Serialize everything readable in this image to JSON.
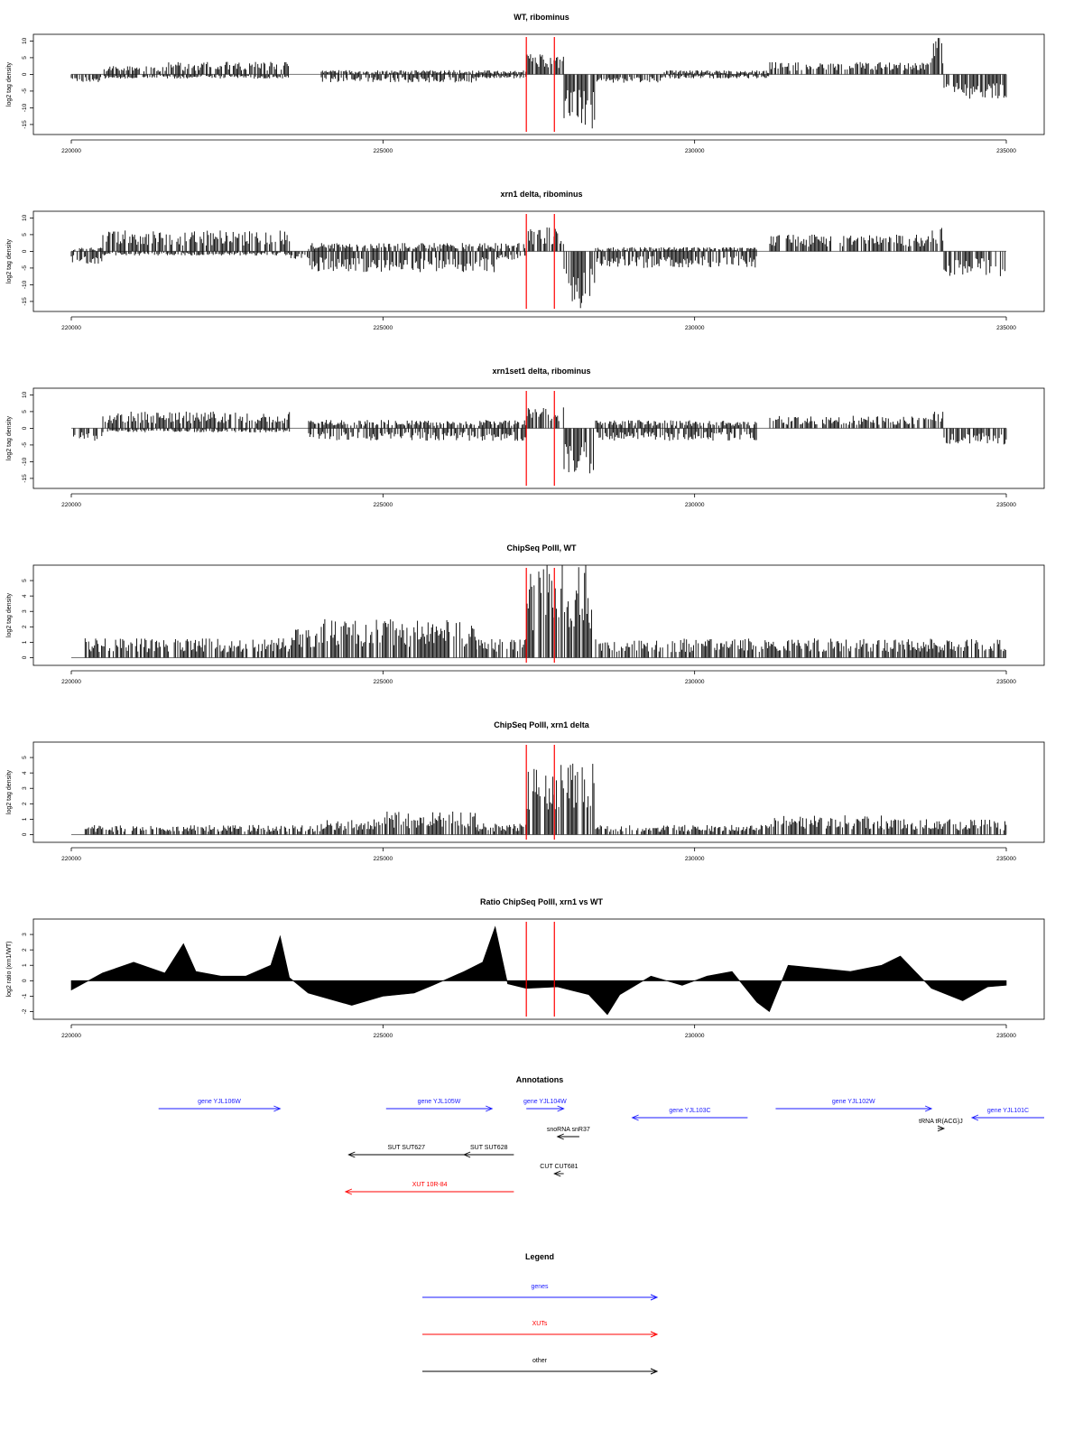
{
  "window_bp": [
    220000,
    235000
  ],
  "highlight_bp": [
    227300,
    227750
  ],
  "colors": {
    "genes": "#1a1aff",
    "xuts": "#ff0000",
    "other": "#000000",
    "highlight": "#ff0000",
    "signal": "#000000"
  },
  "chart_data": [
    {
      "type": "bar",
      "title": "WT, ribominus",
      "ylabel": "log2 tag density",
      "ylim": [
        -18,
        12
      ],
      "yticks": [
        "10",
        "5",
        "0",
        "-5",
        "-10",
        "-15"
      ],
      "xticks": [
        "220000",
        "225000",
        "230000",
        "235000"
      ],
      "bins": [
        {
          "from": 220000,
          "to": 220500,
          "pos": 0,
          "neg": 2
        },
        {
          "from": 220500,
          "to": 221500,
          "pos": 2,
          "neg": 1
        },
        {
          "from": 221500,
          "to": 223500,
          "pos": 3,
          "neg": 1
        },
        {
          "from": 223500,
          "to": 224000,
          "pos": 0,
          "neg": 0
        },
        {
          "from": 224000,
          "to": 226500,
          "pos": 1,
          "neg": 2
        },
        {
          "from": 226500,
          "to": 227300,
          "pos": 1,
          "neg": 1
        },
        {
          "from": 227300,
          "to": 227900,
          "pos": 5,
          "neg": 0
        },
        {
          "from": 227900,
          "to": 228400,
          "pos": 0,
          "neg": 13
        },
        {
          "from": 228400,
          "to": 229500,
          "pos": 0,
          "neg": 2
        },
        {
          "from": 229500,
          "to": 231200,
          "pos": 1,
          "neg": 1
        },
        {
          "from": 231200,
          "to": 233800,
          "pos": 3,
          "neg": 0
        },
        {
          "from": 233800,
          "to": 234000,
          "pos": 9,
          "neg": 0
        },
        {
          "from": 234000,
          "to": 235000,
          "pos": 0,
          "neg": 6
        }
      ]
    },
    {
      "type": "bar",
      "title": "xrn1 delta, ribominus",
      "ylabel": "log2 tag density",
      "ylim": [
        -18,
        12
      ],
      "yticks": [
        "10",
        "5",
        "0",
        "-5",
        "-10",
        "-15"
      ],
      "xticks": [
        "220000",
        "225000",
        "230000",
        "235000"
      ],
      "bins": [
        {
          "from": 220000,
          "to": 220500,
          "pos": 1,
          "neg": 3
        },
        {
          "from": 220500,
          "to": 223500,
          "pos": 5,
          "neg": 1
        },
        {
          "from": 223500,
          "to": 223800,
          "pos": 0,
          "neg": 2
        },
        {
          "from": 223800,
          "to": 226800,
          "pos": 2,
          "neg": 5
        },
        {
          "from": 226800,
          "to": 227300,
          "pos": 2,
          "neg": 2
        },
        {
          "from": 227300,
          "to": 227900,
          "pos": 6,
          "neg": 0
        },
        {
          "from": 227900,
          "to": 228400,
          "pos": 0,
          "neg": 14
        },
        {
          "from": 228400,
          "to": 231000,
          "pos": 1,
          "neg": 4
        },
        {
          "from": 231200,
          "to": 233800,
          "pos": 4,
          "neg": 0
        },
        {
          "from": 233800,
          "to": 234000,
          "pos": 6,
          "neg": 0
        },
        {
          "from": 234000,
          "to": 235000,
          "pos": 0,
          "neg": 6
        }
      ]
    },
    {
      "type": "bar",
      "title": "xrn1set1 delta, ribominus",
      "ylabel": "log2 tag density",
      "ylim": [
        -18,
        12
      ],
      "yticks": [
        "10",
        "5",
        "0",
        "-5",
        "-10",
        "-15"
      ],
      "xticks": [
        "220000",
        "225000",
        "230000",
        "235000"
      ],
      "bins": [
        {
          "from": 220000,
          "to": 220500,
          "pos": 0,
          "neg": 3
        },
        {
          "from": 220500,
          "to": 223500,
          "pos": 4,
          "neg": 1
        },
        {
          "from": 223500,
          "to": 223800,
          "pos": 0,
          "neg": 0
        },
        {
          "from": 223800,
          "to": 227300,
          "pos": 2,
          "neg": 3
        },
        {
          "from": 227300,
          "to": 227900,
          "pos": 5,
          "neg": 0
        },
        {
          "from": 227900,
          "to": 228400,
          "pos": 0,
          "neg": 11
        },
        {
          "from": 228400,
          "to": 231000,
          "pos": 2,
          "neg": 3
        },
        {
          "from": 231200,
          "to": 233800,
          "pos": 3,
          "neg": 0
        },
        {
          "from": 233800,
          "to": 234000,
          "pos": 5,
          "neg": 0
        },
        {
          "from": 234000,
          "to": 235000,
          "pos": 0,
          "neg": 4
        }
      ]
    },
    {
      "type": "bar",
      "title": "ChipSeq PolII, WT",
      "ylabel": "log2 tag density",
      "ylim": [
        -0.5,
        6
      ],
      "yticks": [
        "5",
        "4",
        "3",
        "2",
        "1",
        "0"
      ],
      "xticks": [
        "220000",
        "225000",
        "230000",
        "235000"
      ],
      "bins": [
        {
          "from": 220000,
          "to": 220200,
          "pos": 0,
          "neg": 0
        },
        {
          "from": 220200,
          "to": 223500,
          "pos": 1,
          "neg": 0
        },
        {
          "from": 223500,
          "to": 224000,
          "pos": 1.5,
          "neg": 0
        },
        {
          "from": 224000,
          "to": 226500,
          "pos": 2,
          "neg": 0
        },
        {
          "from": 226500,
          "to": 227300,
          "pos": 1,
          "neg": 0
        },
        {
          "from": 227300,
          "to": 228400,
          "pos": 5,
          "neg": 0
        },
        {
          "from": 228400,
          "to": 229500,
          "pos": 1,
          "neg": 0
        },
        {
          "from": 229500,
          "to": 235000,
          "pos": 1,
          "neg": 0
        }
      ]
    },
    {
      "type": "bar",
      "title": "ChipSeq PolII, xrn1 delta",
      "ylabel": "log2 tag density",
      "ylim": [
        -0.5,
        6
      ],
      "yticks": [
        "5",
        "4",
        "3",
        "2",
        "1",
        "0"
      ],
      "xticks": [
        "220000",
        "225000",
        "230000",
        "235000"
      ],
      "bins": [
        {
          "from": 220000,
          "to": 220200,
          "pos": 0,
          "neg": 0
        },
        {
          "from": 220200,
          "to": 224000,
          "pos": 0.5,
          "neg": 0
        },
        {
          "from": 224000,
          "to": 225000,
          "pos": 0.8,
          "neg": 0
        },
        {
          "from": 225000,
          "to": 226500,
          "pos": 1.2,
          "neg": 0
        },
        {
          "from": 226500,
          "to": 227300,
          "pos": 0.6,
          "neg": 0
        },
        {
          "from": 227300,
          "to": 228400,
          "pos": 3.8,
          "neg": 0
        },
        {
          "from": 228400,
          "to": 231200,
          "pos": 0.5,
          "neg": 0
        },
        {
          "from": 231200,
          "to": 233000,
          "pos": 1,
          "neg": 0
        },
        {
          "from": 233000,
          "to": 235000,
          "pos": 0.8,
          "neg": 0
        }
      ]
    },
    {
      "type": "area",
      "title": "Ratio ChipSeq PolII, xrn1 vs WT",
      "ylabel": "log2 ratio (xrn1/WT)",
      "ylim": [
        -2.5,
        4
      ],
      "yticks": [
        "3",
        "2",
        "1",
        "0",
        "-1",
        "-2"
      ],
      "xticks": [
        "220000",
        "225000",
        "230000",
        "235000"
      ],
      "x": [
        220000,
        220500,
        221000,
        221500,
        221800,
        222000,
        222400,
        222800,
        223200,
        223350,
        223500,
        223800,
        224500,
        225000,
        225500,
        225800,
        226300,
        226600,
        226800,
        227000,
        227300,
        227800,
        228300,
        228600,
        228800,
        229300,
        229800,
        230200,
        230600,
        231000,
        231200,
        231500,
        232000,
        232500,
        233000,
        233300,
        233800,
        234300,
        234700,
        235000
      ],
      "y": [
        -0.6,
        0.5,
        1.2,
        0.5,
        2.4,
        0.6,
        0.3,
        0.3,
        1.0,
        2.9,
        0.2,
        -0.8,
        -1.6,
        -1.0,
        -0.8,
        -0.3,
        0.6,
        1.2,
        3.5,
        -0.2,
        -0.5,
        -0.4,
        -0.9,
        -2.2,
        -0.9,
        0.3,
        -0.3,
        0.3,
        0.6,
        -1.4,
        -2.0,
        1.0,
        0.8,
        0.6,
        1.0,
        1.6,
        -0.5,
        -1.3,
        -0.4,
        -0.3
      ]
    }
  ],
  "annotations": {
    "title": "Annotations",
    "items": [
      {
        "label": "gene YJL106W",
        "from": 221400,
        "to": 223350,
        "row": 0,
        "kind": "genes"
      },
      {
        "label": "gene YJL105W",
        "from": 225050,
        "to": 226750,
        "row": 0,
        "kind": "genes"
      },
      {
        "label": "gene YJL104W",
        "from": 227300,
        "to": 227900,
        "row": 0,
        "kind": "genes"
      },
      {
        "label": "gene YJL103C",
        "from": 229000,
        "to": 230850,
        "row": 1,
        "kind": "genes"
      },
      {
        "label": "gene YJL102W",
        "from": 231300,
        "to": 233800,
        "row": 0,
        "kind": "genes"
      },
      {
        "label": "gene YJL101C",
        "from": 234450,
        "to": 235700,
        "row": 1,
        "kind": "genes"
      },
      {
        "label": "tRNA tR(ACG)J",
        "from": 233900,
        "to": 234000,
        "row": 2,
        "kind": "other"
      },
      {
        "label": "snoRNA snR37",
        "from": 227800,
        "to": 228150,
        "row": 3,
        "kind": "other"
      },
      {
        "label": "SUT SUT627",
        "from": 224450,
        "to": 226300,
        "row": 4,
        "kind": "other"
      },
      {
        "label": "SUT SUT628",
        "from": 226300,
        "to": 227100,
        "row": 4,
        "kind": "other"
      },
      {
        "label": "CUT CUT681",
        "from": 227750,
        "to": 227900,
        "row": 5,
        "kind": "other"
      },
      {
        "label": "XUT 10R-84",
        "from": 224400,
        "to": 227100,
        "row": 6,
        "kind": "xuts"
      }
    ]
  },
  "legend": {
    "title": "Legend",
    "entries": [
      {
        "label": "genes",
        "kind": "genes"
      },
      {
        "label": "XUTs",
        "kind": "xuts"
      },
      {
        "label": "other",
        "kind": "other"
      }
    ]
  }
}
